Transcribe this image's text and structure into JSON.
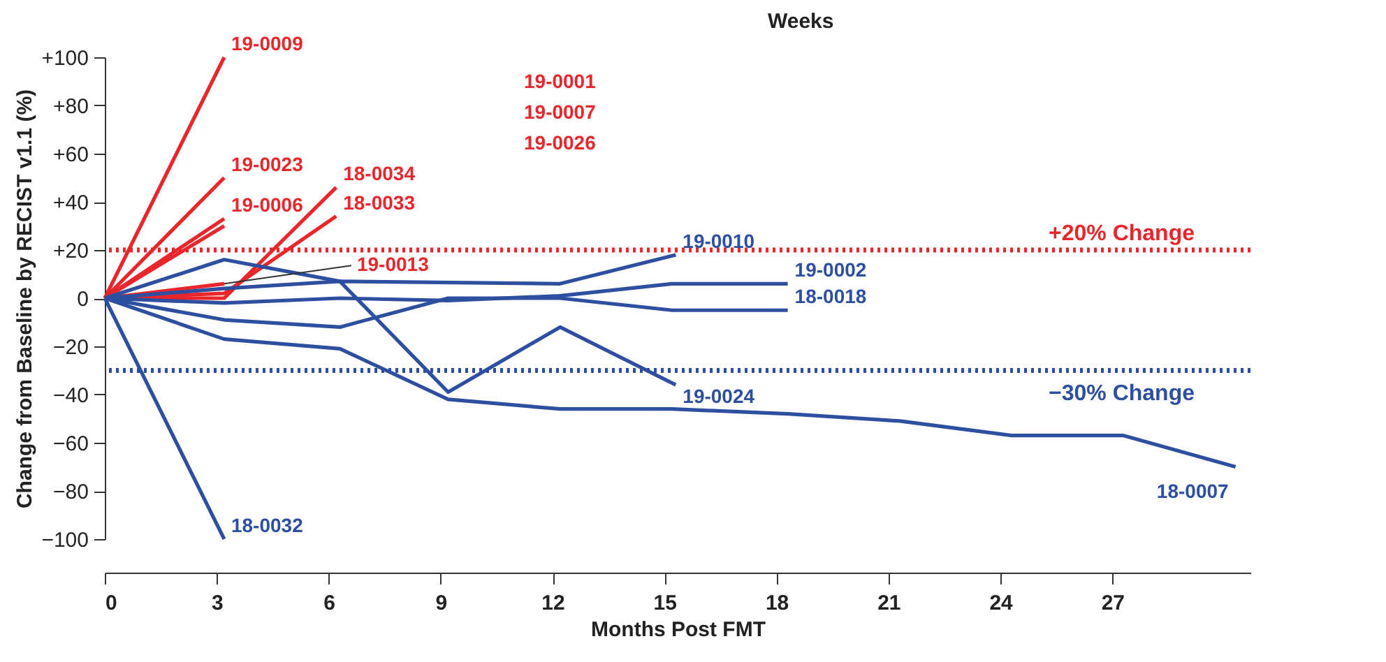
{
  "chart_data": {
    "type": "line",
    "xlabel": "Months Post FMT",
    "ylabel": "Change from Baseline by RECIST v1.1 (%)",
    "xlim": [
      0,
      30.7
    ],
    "xticks": [
      0,
      3,
      6,
      9,
      12,
      15,
      18,
      21,
      24,
      27
    ],
    "ylim": [
      -100,
      100
    ],
    "yticks": [
      {
        "value": 100,
        "label": "+100"
      },
      {
        "value": 80,
        "label": "+80"
      },
      {
        "value": 60,
        "label": "+60"
      },
      {
        "value": 40,
        "label": "+40"
      },
      {
        "value": 20,
        "label": "+20"
      },
      0,
      {
        "value": -20,
        "label": "−20"
      },
      {
        "value": -40,
        "label": "−40"
      },
      {
        "value": -60,
        "label": "−60"
      },
      {
        "value": -80,
        "label": "−80"
      },
      {
        "value": -100,
        "label": "−100"
      }
    ],
    "series": [
      {
        "name": "19-0009",
        "color": "#e8262b",
        "x": [
          0,
          3.2
        ],
        "values": [
          0,
          100
        ]
      },
      {
        "name": "19-0023",
        "color": "#e8262b",
        "x": [
          0,
          3.2
        ],
        "values": [
          0,
          50
        ]
      },
      {
        "name": "19-0006",
        "color": "#e8262b",
        "x": [
          0,
          3.2
        ],
        "values": [
          0,
          33
        ]
      },
      {
        "color": "#e8262b",
        "x": [
          0,
          3.2
        ],
        "values": [
          0,
          30
        ]
      },
      {
        "name": "18-0034",
        "color": "#e8262b",
        "x": [
          0,
          3.2,
          6.2
        ],
        "values": [
          0,
          0,
          46
        ]
      },
      {
        "name": "18-0033",
        "color": "#e8262b",
        "x": [
          0,
          3.2,
          6.2
        ],
        "values": [
          0,
          2,
          34
        ]
      },
      {
        "name": "19-0013",
        "color": "#e8262b",
        "x": [
          0,
          3.2
        ],
        "values": [
          0,
          6
        ]
      },
      {
        "name": "19-0010",
        "color": "#2e4fa0",
        "x": [
          0,
          3.2,
          6.3,
          12.2,
          15.3
        ],
        "values": [
          0,
          4,
          7,
          6,
          18
        ]
      },
      {
        "name": "19-0002",
        "color": "#2e4fa0",
        "x": [
          0,
          3.2,
          6.3,
          9.2,
          12.2,
          15.2,
          18.3
        ],
        "values": [
          0,
          -2,
          0,
          -1,
          1,
          6,
          6
        ]
      },
      {
        "name": "18-0018",
        "color": "#2e4fa0",
        "x": [
          0,
          3.2,
          6.3,
          9.2,
          12.2,
          15.2,
          18.3
        ],
        "values": [
          0,
          -9,
          -12,
          0,
          0,
          -5,
          -5
        ]
      },
      {
        "name": "19-0024",
        "color": "#2e4fa0",
        "x": [
          0,
          3.2,
          6.3,
          9.2,
          12.2,
          15.3
        ],
        "values": [
          0,
          16,
          7,
          -39,
          -12,
          -36
        ]
      },
      {
        "name": "18-0007",
        "color": "#2e4fa0",
        "x": [
          0,
          3.2,
          6.3,
          9.2,
          12.2,
          15.2,
          18.3,
          21.3,
          24.3,
          27.3,
          30.3
        ],
        "values": [
          0,
          -17,
          -21,
          -42,
          -46,
          -46,
          -48,
          -51,
          -57,
          -57,
          -70
        ]
      },
      {
        "name": "18-0032",
        "color": "#2e4fa0",
        "x": [
          0,
          3.2
        ],
        "values": [
          0,
          -100
        ]
      }
    ],
    "ref_lines": [
      {
        "axis": "y",
        "value": 20,
        "label": "+20% Change",
        "color": "#e8262b",
        "line_style": "dotted"
      },
      {
        "axis": "y",
        "value": -30,
        "label": "−30% Change",
        "color": "#2e4fa0",
        "line_style": "dotted"
      }
    ],
    "annotations": [
      "19-0001",
      "19-0007",
      "19-0026",
      "Weeks"
    ]
  }
}
